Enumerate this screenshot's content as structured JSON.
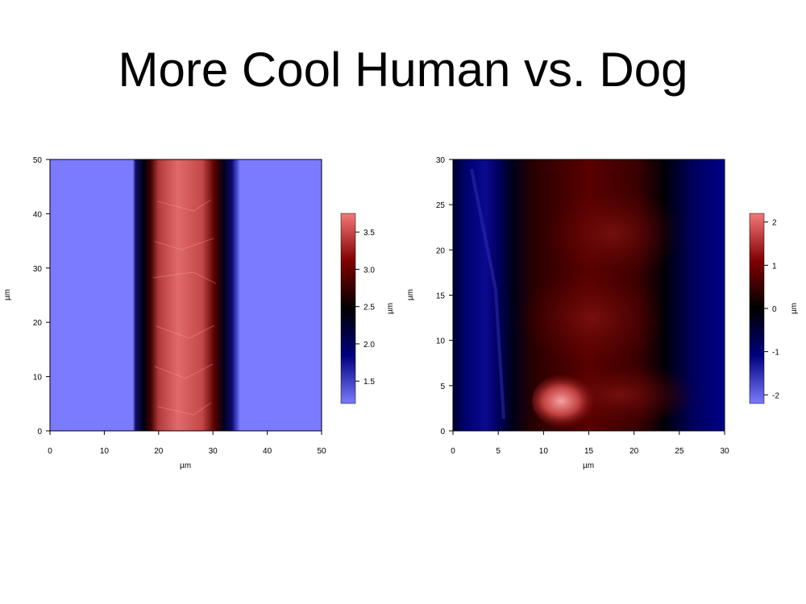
{
  "slide": {
    "title": "More Cool Human vs. Dog"
  },
  "colors": {
    "low": "#7b7bff",
    "dark": "#000000",
    "midblue": "#000080",
    "midred": "#800000",
    "high": "#f47878"
  },
  "chart_data": [
    {
      "type": "heatmap",
      "xlabel": "µm",
      "ylabel": "µm",
      "xlim": [
        0,
        50
      ],
      "ylim": [
        0,
        50
      ],
      "xticks": [
        "0",
        "10",
        "20",
        "30",
        "40",
        "50"
      ],
      "yticks": [
        "0",
        "10",
        "20",
        "30",
        "40",
        "50"
      ],
      "colorbar": {
        "label": "µm",
        "range": [
          1.2,
          3.75
        ],
        "ticks": [
          "1.5",
          "2.0",
          "2.5",
          "3.0",
          "3.5"
        ]
      },
      "description_values": {
        "background_height": 1.25,
        "fiber_center_x": 25,
        "fiber_width": 15,
        "fiber_peak_height": 3.7
      }
    },
    {
      "type": "heatmap",
      "xlabel": "µm",
      "ylabel": "µm",
      "xlim": [
        0,
        30
      ],
      "ylim": [
        0,
        30
      ],
      "xticks": [
        "0",
        "5",
        "10",
        "15",
        "20",
        "25",
        "30"
      ],
      "yticks": [
        "0",
        "5",
        "10",
        "15",
        "20",
        "25",
        "30"
      ],
      "colorbar": {
        "label": "µm",
        "range": [
          -2.2,
          2.2
        ],
        "ticks": [
          "-2",
          "-1",
          "0",
          "1",
          "2"
        ]
      },
      "description_values": {
        "background_height": -1.5,
        "fiber_center_x": 17,
        "fiber_peak_height": 2.1
      }
    }
  ]
}
